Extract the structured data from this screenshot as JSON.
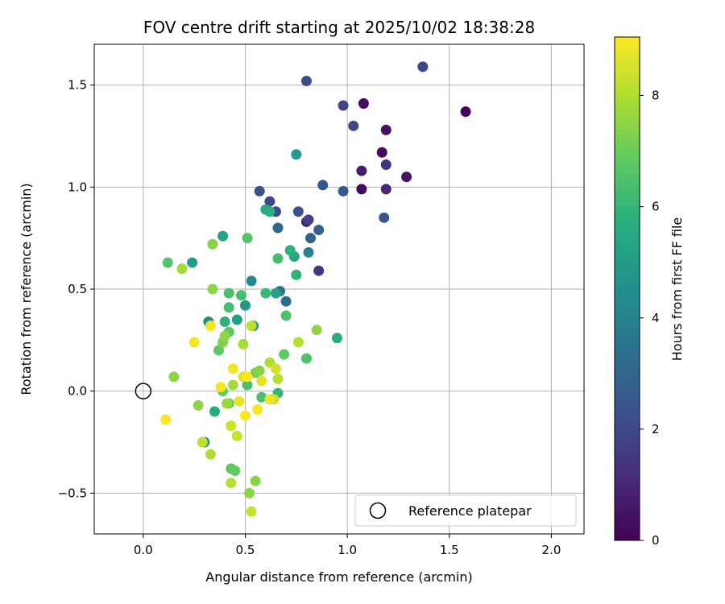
{
  "chart_data": {
    "type": "scatter",
    "title": "FOV centre drift starting at 2025/10/02 18:38:28",
    "xlabel": "Angular distance from reference (arcmin)",
    "ylabel": "Rotation from reference (arcmin)",
    "xlim": [
      -0.24,
      2.16
    ],
    "ylim": [
      -0.7,
      1.7
    ],
    "xticks": [
      0.0,
      0.5,
      1.0,
      1.5,
      2.0
    ],
    "xtick_labels": [
      "0.0",
      "0.5",
      "1.0",
      "1.5",
      "2.0"
    ],
    "yticks": [
      -0.5,
      0.0,
      0.5,
      1.0,
      1.5
    ],
    "ytick_labels": [
      "−0.5",
      "0.0",
      "0.5",
      "1.0",
      "1.5"
    ],
    "grid": true,
    "colorbar": {
      "label": "Hours from first FF file",
      "range": [
        0,
        9.05
      ],
      "ticks": [
        0,
        2,
        4,
        6,
        8
      ],
      "tick_labels": [
        "0",
        "2",
        "4",
        "6",
        "8"
      ],
      "colormap": "viridis"
    },
    "reference_point": {
      "x": 0.0,
      "y": 0.0,
      "label": "Reference platepar"
    },
    "legend": {
      "entries": [
        "Reference platepar"
      ],
      "location": "lower-right"
    },
    "points": [
      {
        "x": 1.58,
        "y": 1.37,
        "h": 0.1
      },
      {
        "x": 1.08,
        "y": 1.41,
        "h": 0.3
      },
      {
        "x": 1.19,
        "y": 1.28,
        "h": 0.4
      },
      {
        "x": 1.17,
        "y": 1.17,
        "h": 0.3
      },
      {
        "x": 1.29,
        "y": 1.05,
        "h": 0.5
      },
      {
        "x": 1.07,
        "y": 0.99,
        "h": 0.2
      },
      {
        "x": 1.07,
        "y": 1.08,
        "h": 0.7
      },
      {
        "x": 1.19,
        "y": 0.99,
        "h": 1.0
      },
      {
        "x": 1.19,
        "y": 1.11,
        "h": 1.3
      },
      {
        "x": 0.8,
        "y": 0.83,
        "h": 0.9
      },
      {
        "x": 0.86,
        "y": 0.59,
        "h": 1.5
      },
      {
        "x": 1.37,
        "y": 1.59,
        "h": 2.0
      },
      {
        "x": 0.8,
        "y": 1.52,
        "h": 2.1
      },
      {
        "x": 0.98,
        "y": 1.4,
        "h": 1.9
      },
      {
        "x": 1.03,
        "y": 1.3,
        "h": 2.0
      },
      {
        "x": 0.88,
        "y": 1.01,
        "h": 2.4
      },
      {
        "x": 0.98,
        "y": 0.98,
        "h": 2.5
      },
      {
        "x": 1.18,
        "y": 0.85,
        "h": 2.4
      },
      {
        "x": 0.57,
        "y": 0.98,
        "h": 2.3
      },
      {
        "x": 0.62,
        "y": 0.93,
        "h": 2.0
      },
      {
        "x": 0.65,
        "y": 0.88,
        "h": 2.1
      },
      {
        "x": 0.76,
        "y": 0.88,
        "h": 2.3
      },
      {
        "x": 0.81,
        "y": 0.84,
        "h": 1.8
      },
      {
        "x": 0.86,
        "y": 0.79,
        "h": 2.8
      },
      {
        "x": 0.66,
        "y": 0.8,
        "h": 3.0
      },
      {
        "x": 0.82,
        "y": 0.75,
        "h": 2.9
      },
      {
        "x": 0.7,
        "y": 0.44,
        "h": 3.3
      },
      {
        "x": 0.67,
        "y": 0.49,
        "h": 3.6
      },
      {
        "x": 0.81,
        "y": 0.68,
        "h": 4.1
      },
      {
        "x": 0.53,
        "y": 0.54,
        "h": 4.3
      },
      {
        "x": 0.54,
        "y": 0.32,
        "h": 4.6
      },
      {
        "x": 0.32,
        "y": 0.34,
        "h": 4.4
      },
      {
        "x": 0.3,
        "y": -0.25,
        "h": 4.4
      },
      {
        "x": 0.75,
        "y": 1.16,
        "h": 5.0
      },
      {
        "x": 0.24,
        "y": 0.63,
        "h": 5.0
      },
      {
        "x": 0.39,
        "y": 0.76,
        "h": 5.2
      },
      {
        "x": 0.46,
        "y": 0.35,
        "h": 5.1
      },
      {
        "x": 0.5,
        "y": 0.42,
        "h": 4.9
      },
      {
        "x": 0.65,
        "y": 0.48,
        "h": 5.2
      },
      {
        "x": 0.74,
        "y": 0.66,
        "h": 5.4
      },
      {
        "x": 0.6,
        "y": 0.89,
        "h": 5.5
      },
      {
        "x": 0.62,
        "y": 0.88,
        "h": 5.7
      },
      {
        "x": 0.72,
        "y": 0.69,
        "h": 5.8
      },
      {
        "x": 0.75,
        "y": 0.57,
        "h": 5.9
      },
      {
        "x": 0.6,
        "y": 0.48,
        "h": 6.1
      },
      {
        "x": 0.95,
        "y": 0.26,
        "h": 5.6
      },
      {
        "x": 0.4,
        "y": 0.34,
        "h": 5.8
      },
      {
        "x": 0.35,
        "y": -0.1,
        "h": 5.6
      },
      {
        "x": 0.66,
        "y": 0.65,
        "h": 6.3
      },
      {
        "x": 0.48,
        "y": 0.47,
        "h": 6.3
      },
      {
        "x": 0.42,
        "y": 0.48,
        "h": 6.4
      },
      {
        "x": 0.42,
        "y": 0.41,
        "h": 6.3
      },
      {
        "x": 0.7,
        "y": 0.37,
        "h": 6.5
      },
      {
        "x": 0.66,
        "y": -0.01,
        "h": 6.0
      },
      {
        "x": 0.58,
        "y": -0.03,
        "h": 6.4
      },
      {
        "x": 0.51,
        "y": 0.03,
        "h": 6.4
      },
      {
        "x": 0.12,
        "y": 0.63,
        "h": 6.6
      },
      {
        "x": 0.51,
        "y": 0.75,
        "h": 6.6
      },
      {
        "x": 0.42,
        "y": 0.29,
        "h": 6.7
      },
      {
        "x": 0.37,
        "y": 0.2,
        "h": 6.8
      },
      {
        "x": 0.69,
        "y": 0.18,
        "h": 6.8
      },
      {
        "x": 0.8,
        "y": 0.16,
        "h": 6.5
      },
      {
        "x": 0.39,
        "y": 0.0,
        "h": 6.9
      },
      {
        "x": 0.42,
        "y": -0.06,
        "h": 6.9
      },
      {
        "x": 0.43,
        "y": -0.38,
        "h": 6.8
      },
      {
        "x": 0.45,
        "y": -0.39,
        "h": 6.9
      },
      {
        "x": 0.55,
        "y": 0.09,
        "h": 7.2
      },
      {
        "x": 0.57,
        "y": 0.1,
        "h": 7.4
      },
      {
        "x": 0.34,
        "y": 0.72,
        "h": 7.4
      },
      {
        "x": 0.34,
        "y": 0.5,
        "h": 7.5
      },
      {
        "x": 0.39,
        "y": 0.24,
        "h": 7.3
      },
      {
        "x": 0.4,
        "y": 0.27,
        "h": 7.5
      },
      {
        "x": 0.15,
        "y": 0.07,
        "h": 7.5
      },
      {
        "x": 0.27,
        "y": -0.07,
        "h": 7.5
      },
      {
        "x": 0.85,
        "y": 0.3,
        "h": 7.6
      },
      {
        "x": 0.55,
        "y": -0.44,
        "h": 7.4
      },
      {
        "x": 0.52,
        "y": -0.5,
        "h": 7.5
      },
      {
        "x": 0.41,
        "y": -0.06,
        "h": 7.7
      },
      {
        "x": 0.19,
        "y": 0.6,
        "h": 7.8
      },
      {
        "x": 0.49,
        "y": 0.23,
        "h": 7.9
      },
      {
        "x": 0.44,
        "y": 0.03,
        "h": 7.8
      },
      {
        "x": 0.62,
        "y": 0.14,
        "h": 8.0
      },
      {
        "x": 0.76,
        "y": 0.24,
        "h": 8.1
      },
      {
        "x": 0.53,
        "y": 0.32,
        "h": 8.2
      },
      {
        "x": 0.66,
        "y": 0.06,
        "h": 8.1
      },
      {
        "x": 0.29,
        "y": -0.25,
        "h": 8.2
      },
      {
        "x": 0.33,
        "y": -0.31,
        "h": 8.0
      },
      {
        "x": 0.43,
        "y": -0.45,
        "h": 8.1
      },
      {
        "x": 0.46,
        "y": -0.22,
        "h": 8.3
      },
      {
        "x": 0.43,
        "y": -0.17,
        "h": 8.4
      },
      {
        "x": 0.53,
        "y": -0.59,
        "h": 8.3
      },
      {
        "x": 0.64,
        "y": -0.04,
        "h": 8.3
      },
      {
        "x": 0.65,
        "y": 0.11,
        "h": 8.5
      },
      {
        "x": 0.49,
        "y": 0.07,
        "h": 8.6
      },
      {
        "x": 0.58,
        "y": 0.05,
        "h": 8.7
      },
      {
        "x": 0.62,
        "y": -0.04,
        "h": 8.8
      },
      {
        "x": 0.47,
        "y": -0.05,
        "h": 8.8
      },
      {
        "x": 0.44,
        "y": 0.11,
        "h": 8.9
      },
      {
        "x": 0.38,
        "y": 0.02,
        "h": 8.9
      },
      {
        "x": 0.25,
        "y": 0.24,
        "h": 8.9
      },
      {
        "x": 0.33,
        "y": 0.32,
        "h": 8.9
      },
      {
        "x": 0.51,
        "y": 0.07,
        "h": 9.0
      },
      {
        "x": 0.56,
        "y": -0.09,
        "h": 9.0
      },
      {
        "x": 0.5,
        "y": -0.12,
        "h": 9.0
      },
      {
        "x": 0.11,
        "y": -0.14,
        "h": 9.0
      }
    ]
  }
}
